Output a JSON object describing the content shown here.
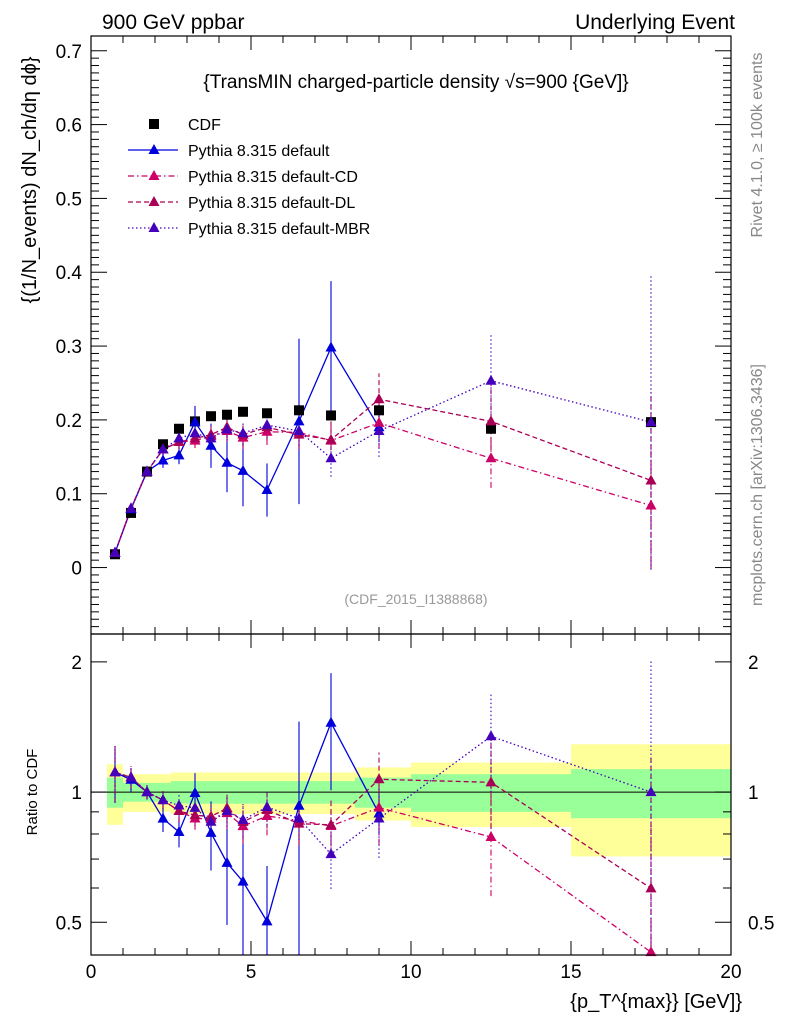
{
  "header": {
    "left": "900 GeV ppbar",
    "right": "Underlying Event"
  },
  "side_labels": {
    "rivet": "Rivet 4.1.0, ≥ 100k events",
    "mcplots": "mcplots.cern.ch [arXiv:1306.3436]"
  },
  "chart_data": {
    "type": "scatter",
    "title": "{TransMIN charged-particle density √s=900 {GeV]}",
    "analysis_tag": "(CDF_2015_I1388868)",
    "ylabel_main": "{(1/N_events) dN_ch/dη dϕ}",
    "ylabel_ratio": "Ratio to CDF",
    "xlabel": "{p_T^{max}} [GeV]}",
    "xlim": [
      0,
      20
    ],
    "ylim_main": [
      -0.09,
      0.72
    ],
    "ylim_ratio": [
      0.42,
      2.32
    ],
    "x_ticks": [
      "0",
      "5",
      "10",
      "15",
      "20"
    ],
    "y_ticks_main": [
      "0",
      "0.1",
      "0.2",
      "0.3",
      "0.4",
      "0.5",
      "0.6",
      "0.7"
    ],
    "y_ticks_ratio": [
      "0.5",
      "1",
      "2"
    ],
    "x": [
      0.75,
      1.25,
      1.75,
      2.25,
      2.75,
      3.25,
      3.75,
      4.25,
      4.75,
      5.5,
      6.5,
      7.5,
      9.0,
      12.5,
      17.5
    ],
    "series": [
      {
        "name": "CDF",
        "color": "#000000",
        "marker": "square",
        "values": [
          0.018,
          0.074,
          0.13,
          0.167,
          0.188,
          0.198,
          0.205,
          0.207,
          0.211,
          0.209,
          0.213,
          0.206,
          0.213,
          0.188,
          0.197
        ],
        "band_inner": [
          0.08,
          0.05,
          0.05,
          0.05,
          0.06,
          0.06,
          0.06,
          0.06,
          0.06,
          0.06,
          0.06,
          0.06,
          0.08,
          0.1,
          0.13
        ],
        "band_outer": [
          0.16,
          0.1,
          0.1,
          0.1,
          0.11,
          0.11,
          0.11,
          0.11,
          0.11,
          0.11,
          0.11,
          0.11,
          0.14,
          0.17,
          0.29
        ]
      },
      {
        "name": "Pythia 8.315 default",
        "color": "#0000dd",
        "line": "solid",
        "values": [
          0.02,
          0.079,
          0.13,
          0.145,
          0.152,
          0.197,
          0.165,
          0.142,
          0.131,
          0.105,
          0.198,
          0.298,
          0.19,
          null,
          null
        ],
        "errors": [
          0.003,
          0.005,
          0.005,
          0.01,
          0.012,
          0.022,
          0.03,
          0.04,
          0.048,
          0.036,
          0.112,
          0.09,
          0.02,
          null,
          null
        ]
      },
      {
        "name": "Pythia 8.315 default-CD",
        "color": "#cc0066",
        "line": "dashdot",
        "values": [
          0.02,
          0.08,
          0.13,
          0.16,
          0.17,
          0.172,
          0.178,
          0.185,
          0.176,
          0.184,
          0.183,
          0.172,
          0.196,
          0.148,
          0.084
        ],
        "errors": [
          0.003,
          0.005,
          0.005,
          0.008,
          0.01,
          0.01,
          0.012,
          0.015,
          0.016,
          0.018,
          0.02,
          0.025,
          0.035,
          0.04,
          0.08
        ]
      },
      {
        "name": "Pythia 8.315 default-DL",
        "color": "#aa0055",
        "line": "dashed",
        "values": [
          0.02,
          0.08,
          0.13,
          0.16,
          0.17,
          0.175,
          0.18,
          0.19,
          0.18,
          0.19,
          0.18,
          0.173,
          0.228,
          0.198,
          0.118
        ],
        "errors": [
          0.003,
          0.005,
          0.005,
          0.008,
          0.01,
          0.01,
          0.012,
          0.015,
          0.016,
          0.018,
          0.02,
          0.025,
          0.035,
          0.05,
          0.12
        ]
      },
      {
        "name": "Pythia 8.315 default-MBR",
        "color": "#4400bb",
        "line": "dotted",
        "values": [
          0.02,
          0.08,
          0.13,
          0.16,
          0.175,
          0.182,
          0.175,
          0.187,
          0.182,
          0.193,
          0.185,
          0.148,
          0.185,
          0.253,
          0.197
        ],
        "errors": [
          0.003,
          0.005,
          0.005,
          0.008,
          0.01,
          0.01,
          0.012,
          0.015,
          0.016,
          0.018,
          0.02,
          0.025,
          0.035,
          0.065,
          0.2
        ]
      }
    ]
  }
}
